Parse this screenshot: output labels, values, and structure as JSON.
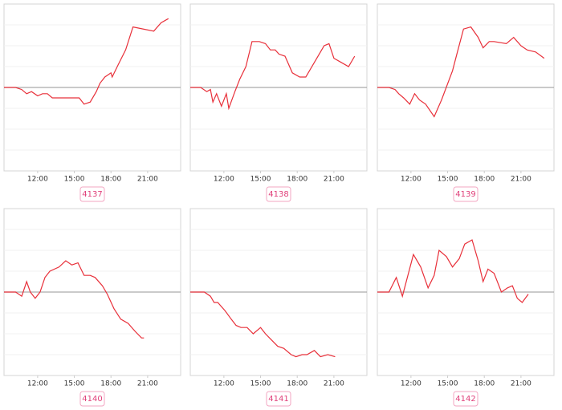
{
  "chart_data": [
    {
      "type": "line",
      "label": "4137",
      "color": "#e8303a",
      "baseline": 0,
      "xlim": [
        9.25,
        23.7
      ],
      "ylim": [
        -4,
        4
      ],
      "xticks": [
        {
          "value": 12,
          "label": "12:00"
        },
        {
          "value": 15,
          "label": "15:00"
        },
        {
          "value": 18,
          "label": "18:00"
        },
        {
          "value": 21,
          "label": "21:00"
        }
      ],
      "x": [
        9.25,
        10.2,
        10.7,
        11.1,
        11.5,
        12.0,
        12.4,
        12.8,
        13.2,
        14.1,
        15.0,
        15.4,
        15.8,
        16.3,
        16.8,
        17.1,
        17.5,
        18.0,
        18.1,
        18.6,
        19.2,
        19.8,
        21.5,
        22.1,
        22.7
      ],
      "values": [
        0,
        0,
        -0.1,
        -0.3,
        -0.2,
        -0.4,
        -0.3,
        -0.3,
        -0.5,
        -0.5,
        -0.5,
        -0.5,
        -0.8,
        -0.7,
        -0.2,
        0.2,
        0.5,
        0.7,
        0.5,
        1.1,
        1.8,
        2.9,
        2.7,
        3.1,
        3.3
      ]
    },
    {
      "type": "line",
      "label": "4138",
      "color": "#e8303a",
      "baseline": 0,
      "xlim": [
        9.25,
        23.7
      ],
      "ylim": [
        -4,
        4
      ],
      "xticks": [
        {
          "value": 12,
          "label": "12:00"
        },
        {
          "value": 15,
          "label": "15:00"
        },
        {
          "value": 18,
          "label": "18:00"
        },
        {
          "value": 21,
          "label": "21:00"
        }
      ],
      "x": [
        9.25,
        10.1,
        10.6,
        10.9,
        11.1,
        11.4,
        11.8,
        12.2,
        12.4,
        12.9,
        13.3,
        13.8,
        14.3,
        14.9,
        15.4,
        15.8,
        16.2,
        16.5,
        17.0,
        17.6,
        18.2,
        18.7,
        19.4,
        19.9,
        20.2,
        20.6,
        21.0,
        21.6,
        22.2,
        22.7
      ],
      "values": [
        0,
        0,
        -0.2,
        -0.1,
        -0.7,
        -0.3,
        -0.9,
        -0.3,
        -1.0,
        -0.2,
        0.4,
        1.0,
        2.2,
        2.2,
        2.1,
        1.8,
        1.8,
        1.6,
        1.5,
        0.7,
        0.5,
        0.5,
        1.2,
        1.7,
        2.0,
        2.1,
        1.4,
        1.2,
        1.0,
        1.5
      ]
    },
    {
      "type": "line",
      "label": "4139",
      "color": "#e8303a",
      "baseline": 0,
      "xlim": [
        9.25,
        23.7
      ],
      "ylim": [
        -4,
        4
      ],
      "xticks": [
        {
          "value": 12,
          "label": "12:00"
        },
        {
          "value": 15,
          "label": "15:00"
        },
        {
          "value": 18,
          "label": "18:00"
        },
        {
          "value": 21,
          "label": "21:00"
        }
      ],
      "x": [
        9.25,
        10.2,
        10.7,
        11.0,
        11.4,
        11.9,
        12.3,
        12.7,
        13.2,
        13.9,
        14.5,
        15.4,
        15.8,
        16.3,
        16.9,
        17.5,
        17.9,
        18.4,
        18.8,
        19.8,
        20.4,
        21.0,
        21.5,
        22.2,
        22.9
      ],
      "values": [
        0,
        0,
        -0.1,
        -0.3,
        -0.5,
        -0.8,
        -0.3,
        -0.6,
        -0.8,
        -1.4,
        -0.6,
        0.8,
        1.7,
        2.8,
        2.9,
        2.4,
        1.9,
        2.2,
        2.2,
        2.1,
        2.4,
        2.0,
        1.8,
        1.7,
        1.4
      ]
    },
    {
      "type": "line",
      "label": "4140",
      "color": "#e8303a",
      "baseline": 0,
      "xlim": [
        9.25,
        23.7
      ],
      "ylim": [
        -4,
        4
      ],
      "xticks": [
        {
          "value": 12,
          "label": "12:00"
        },
        {
          "value": 15,
          "label": "15:00"
        },
        {
          "value": 18,
          "label": "18:00"
        },
        {
          "value": 21,
          "label": "21:00"
        }
      ],
      "x": [
        9.25,
        10.2,
        10.7,
        11.1,
        11.4,
        11.8,
        12.2,
        12.6,
        13.0,
        13.75,
        14.3,
        14.8,
        15.3,
        15.8,
        16.3,
        16.7,
        17.3,
        17.7,
        18.25,
        18.8,
        19.4,
        20.0,
        20.5,
        20.7
      ],
      "values": [
        0,
        0,
        -0.2,
        0.5,
        0,
        -0.3,
        0,
        0.7,
        1.0,
        1.2,
        1.5,
        1.3,
        1.4,
        0.8,
        0.8,
        0.7,
        0.3,
        -0.1,
        -0.8,
        -1.3,
        -1.5,
        -1.9,
        -2.2,
        -2.2
      ]
    },
    {
      "type": "line",
      "label": "4141",
      "color": "#e8303a",
      "baseline": 0,
      "xlim": [
        9.25,
        23.7
      ],
      "ylim": [
        -4,
        4
      ],
      "xticks": [
        {
          "value": 12,
          "label": "12:00"
        },
        {
          "value": 15,
          "label": "15:00"
        },
        {
          "value": 18,
          "label": "18:00"
        },
        {
          "value": 21,
          "label": "21:00"
        }
      ],
      "x": [
        9.25,
        10.4,
        10.9,
        11.2,
        11.5,
        12.1,
        12.6,
        13.0,
        13.4,
        13.9,
        14.4,
        15.0,
        15.4,
        15.9,
        16.4,
        16.9,
        17.5,
        17.9,
        18.4,
        18.8,
        19.4,
        19.9,
        20.5,
        21.1
      ],
      "values": [
        0,
        0,
        -0.2,
        -0.5,
        -0.5,
        -0.9,
        -1.3,
        -1.6,
        -1.7,
        -1.7,
        -2.0,
        -1.7,
        -2.0,
        -2.3,
        -2.6,
        -2.7,
        -3.0,
        -3.1,
        -3.0,
        -3.0,
        -2.8,
        -3.1,
        -3.0,
        -3.1
      ]
    },
    {
      "type": "line",
      "label": "4142",
      "color": "#e8303a",
      "baseline": 0,
      "xlim": [
        9.25,
        23.7
      ],
      "ylim": [
        -4,
        4
      ],
      "xticks": [
        {
          "value": 12,
          "label": "12:00"
        },
        {
          "value": 15,
          "label": "15:00"
        },
        {
          "value": 18,
          "label": "18:00"
        },
        {
          "value": 21,
          "label": "21:00"
        }
      ],
      "x": [
        9.25,
        10.2,
        10.8,
        11.3,
        12.2,
        12.8,
        13.4,
        13.9,
        14.3,
        14.9,
        15.4,
        15.95,
        16.4,
        17.0,
        17.5,
        17.9,
        18.3,
        18.8,
        19.4,
        19.9,
        20.3,
        20.7,
        21.1,
        21.6
      ],
      "values": [
        0,
        0,
        0.7,
        -0.2,
        1.8,
        1.2,
        0.2,
        0.8,
        2.0,
        1.7,
        1.2,
        1.6,
        2.3,
        2.5,
        1.5,
        0.5,
        1.1,
        0.9,
        0,
        0.2,
        0.3,
        -0.3,
        -0.5,
        -0.1
      ]
    }
  ]
}
